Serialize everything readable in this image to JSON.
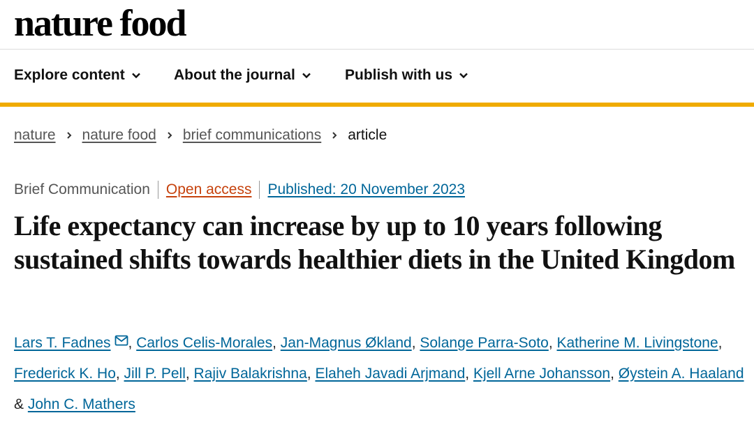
{
  "brand": {
    "logo_text": "nature food"
  },
  "nav": {
    "items": [
      {
        "label": "Explore content",
        "icon": "chevron-down-icon"
      },
      {
        "label": "About the journal",
        "icon": "chevron-down-icon"
      },
      {
        "label": "Publish with us",
        "icon": "chevron-down-icon"
      }
    ],
    "accent_color": "#f0ab00"
  },
  "breadcrumb": {
    "items": [
      "nature",
      "nature food",
      "brief communications"
    ],
    "current": "article",
    "separator_icon": "chevron-right-icon"
  },
  "article": {
    "type": "Brief Communication",
    "access": "Open access",
    "published": "Published: 20 November 2023",
    "title": "Life expectancy can increase by up to 10  years following sustained shifts towards healthier diets in the United Kingdom",
    "authors": [
      "Lars T. Fadnes",
      "Carlos Celis-Morales",
      "Jan-Magnus Økland",
      "Solange Parra-Soto",
      "Katherine M. Livingstone",
      "Frederick K. Ho",
      "Jill P. Pell",
      "Rajiv Balakrishna",
      "Elaheh Javadi Arjmand",
      "Kjell Arne Johansson",
      "Øystein A. Haaland",
      "John C. Mathers"
    ],
    "author_separator": ", ",
    "last_separator": " & ",
    "corresponding_icon": "mail-icon",
    "colors": {
      "link": "#006699",
      "open_access": "#c6420d"
    }
  }
}
